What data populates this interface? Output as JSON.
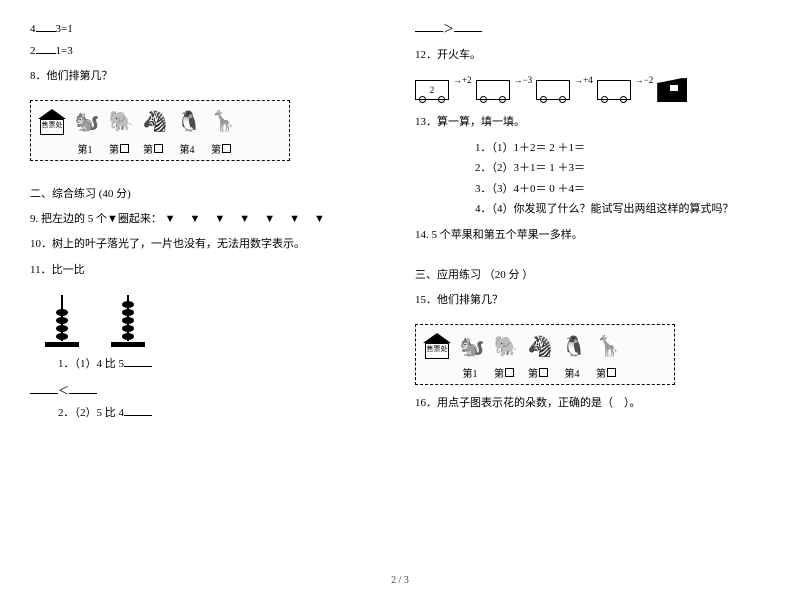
{
  "leftCol": {
    "eq1_a": "4",
    "eq1_b": "3=1",
    "eq2_a": "2",
    "eq2_b": "1=3",
    "q8": "8．他们排第几？",
    "booth_label": "售票处",
    "pos1": "第1",
    "posBox": "第",
    "pos4": "第4",
    "section2": "二、综合练习 (40 分)",
    "q9_prefix": "9. 把左边的 5 个▼圈起来：",
    "q9_triangles": "▼▼▼▼▼▼▼",
    "q10": "10．树上的叶子落光了，一片也没有，无法用数字表示。",
    "q11": "11．比一比",
    "q11_1": "1．（1）4 比 5",
    "q11_lt": "＜",
    "q11_2": "2．（2）5 比 4"
  },
  "rightCol": {
    "gt": "＞",
    "q12": "12．开火车。",
    "train_start": "2",
    "op1": "+2",
    "op2": "−3",
    "op3": "+4",
    "op4": "−2",
    "q13": "13．算一算，填一填。",
    "q13_1": "1．（1）1＋2＝ 2 ＋1＝",
    "q13_2": "2．（2）3＋1＝ 1 ＋3＝",
    "q13_3": "3．（3）4＋0＝ 0 ＋4＝",
    "q13_4": "4．（4）你发现了什么？能试写出两组这样的算式吗？",
    "q14": "14. 5 个苹果和第五个苹果一多样。",
    "section3": "三、应用练习 （20 分 ）",
    "q15": "15．他们排第几？",
    "q16": "16．用点子图表示花的朵数，正确的是（　）。"
  },
  "footer": "2 / 3",
  "animals": [
    "🐿️",
    "🐘",
    "🦓",
    "🐧",
    "🦒"
  ]
}
